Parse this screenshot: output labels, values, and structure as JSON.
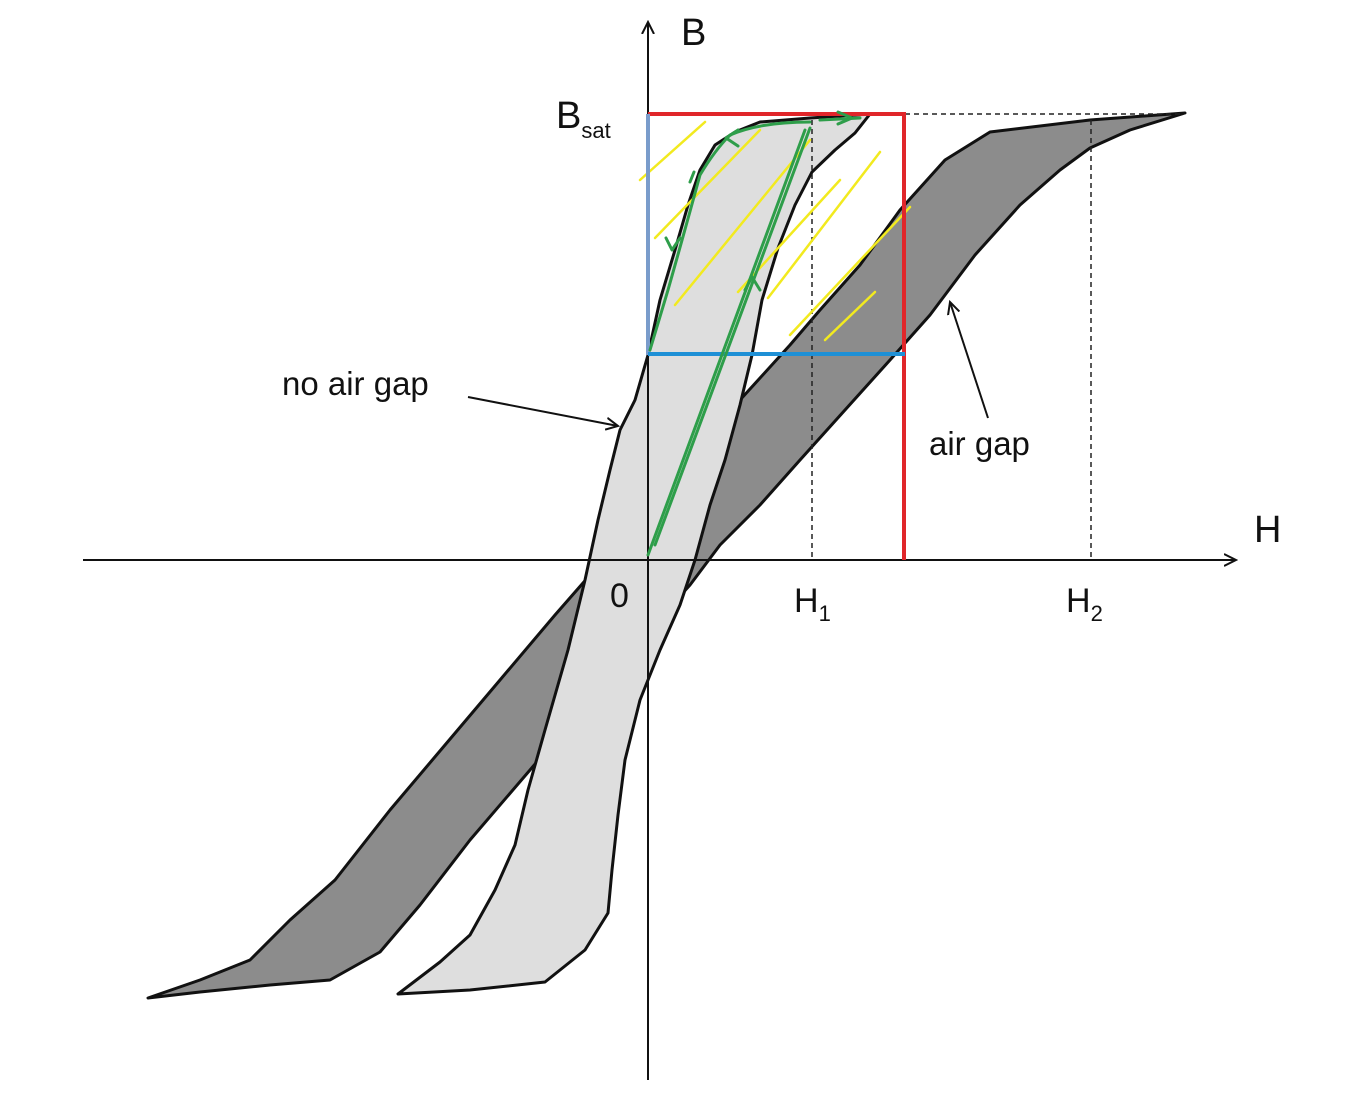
{
  "axes": {
    "h_axis_label": "H",
    "b_axis_label": "B",
    "origin_label": "0",
    "b_sat": {
      "main": "B",
      "sub": "sat"
    },
    "h1": {
      "main": "H",
      "sub": "1"
    },
    "h2": {
      "main": "H",
      "sub": "2"
    }
  },
  "annotations": {
    "no_air_gap": "no air gap",
    "air_gap": "air gap"
  },
  "colors": {
    "air_gap_loop_fill": "#8c8c8c",
    "no_air_gap_loop_fill": "#dedede",
    "outline": "#111111",
    "red_box": "#e0262a",
    "blue_lines": "#1e90d6",
    "green_path": "#2e9e4a",
    "yellow_hatch": "#f2ea1f"
  }
}
